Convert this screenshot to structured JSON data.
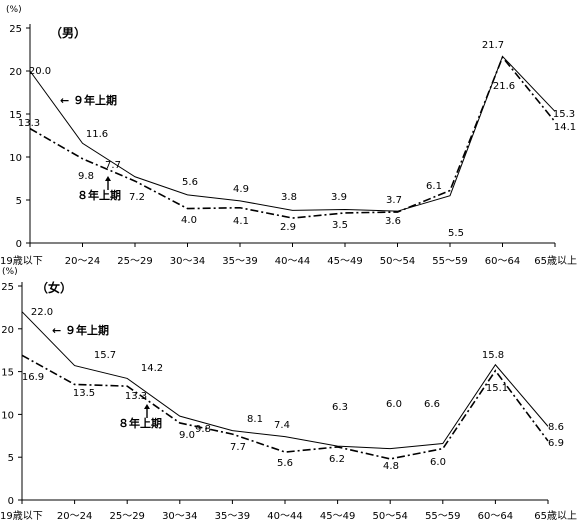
{
  "chart_data": [
    {
      "type": "line",
      "title": "（男）",
      "unit_label": "(%)",
      "ylim": [
        0,
        25
      ],
      "yticks": [
        0,
        5,
        10,
        15,
        20,
        25
      ],
      "categories": [
        "19歳以下",
        "20～24",
        "25～29",
        "30～34",
        "35～39",
        "40～44",
        "45～49",
        "50～54",
        "55～59",
        "60～64",
        "65歳以上"
      ],
      "series": [
        {
          "name": "９年上期",
          "values": [
            20.0,
            11.6,
            7.7,
            5.6,
            4.9,
            3.8,
            3.9,
            3.7,
            5.5,
            21.7,
            15.3
          ]
        },
        {
          "name": "８年上期",
          "values": [
            13.3,
            9.8,
            7.2,
            4.0,
            4.1,
            2.9,
            3.5,
            3.6,
            6.1,
            21.6,
            14.1
          ]
        }
      ]
    },
    {
      "type": "line",
      "title": "（女）",
      "unit_label": "(%)",
      "ylim": [
        0,
        25
      ],
      "yticks": [
        0,
        5,
        10,
        15,
        20,
        25
      ],
      "categories": [
        "19歳以下",
        "20～24",
        "25～29",
        "30～34",
        "35～39",
        "40～44",
        "45～49",
        "50～54",
        "55～59",
        "60～64",
        "65歳以上"
      ],
      "series": [
        {
          "name": "９年上期",
          "values": [
            22.0,
            15.7,
            14.2,
            9.8,
            8.1,
            7.4,
            6.3,
            6.0,
            6.6,
            15.8,
            8.6
          ]
        },
        {
          "name": "８年上期",
          "values": [
            16.9,
            13.5,
            13.3,
            9.0,
            7.7,
            5.6,
            6.2,
            4.8,
            6.0,
            15.1,
            6.9
          ]
        }
      ]
    }
  ],
  "colors": {
    "line": "#000000",
    "background": "#ffffff"
  }
}
